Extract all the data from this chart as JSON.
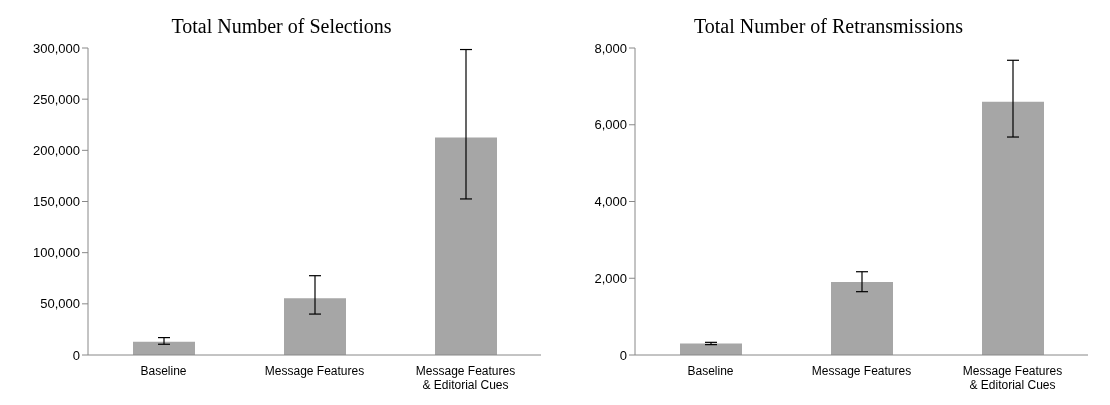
{
  "chart_data": [
    {
      "type": "bar",
      "title": "Total Number of Selections",
      "categories": [
        "Baseline",
        "Message Features",
        "Message Features & Editorial Cues"
      ],
      "values": [
        13000,
        55500,
        212500
      ],
      "color": "#a6a6a6",
      "errors": [
        [
          10500,
          17000
        ],
        [
          40000,
          77500
        ],
        [
          152500,
          298500
        ]
      ],
      "ylim": [
        0,
        300000
      ],
      "yticks": [
        {
          "value": 0,
          "label": "0"
        },
        {
          "value": 50000,
          "label": "50,000"
        },
        {
          "value": 100000,
          "label": "100,000"
        },
        {
          "value": 150000,
          "label": "150,000"
        },
        {
          "value": 200000,
          "label": "200,000"
        },
        {
          "value": 250000,
          "label": "250,000"
        },
        {
          "value": 300000,
          "label": "300,000"
        }
      ],
      "grid": false,
      "legend": false
    },
    {
      "type": "bar",
      "title": "Total Number of Retransmissions",
      "categories": [
        "Baseline",
        "Message Features",
        "Message Features & Editorial Cues"
      ],
      "values": [
        300,
        1900,
        6600
      ],
      "color": "#a6a6a6",
      "errors": [
        [
          270,
          330
        ],
        [
          1650,
          2170
        ],
        [
          5680,
          7680
        ]
      ],
      "ylim": [
        0,
        8000
      ],
      "yticks": [
        {
          "value": 0,
          "label": "0"
        },
        {
          "value": 2000,
          "label": "2,000"
        },
        {
          "value": 4000,
          "label": "4,000"
        },
        {
          "value": 6000,
          "label": "6,000"
        },
        {
          "value": 8000,
          "label": "8,000"
        }
      ],
      "grid": false,
      "legend": false
    }
  ]
}
